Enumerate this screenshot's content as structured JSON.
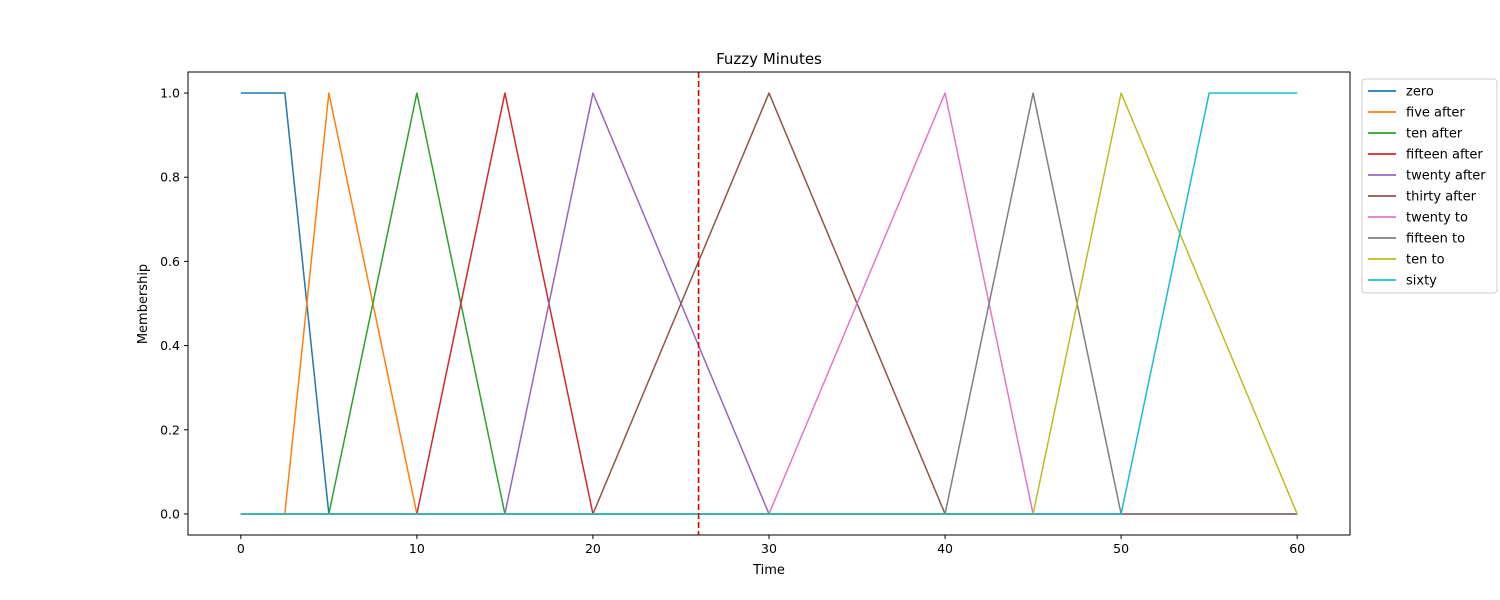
{
  "chart_data": {
    "type": "line",
    "title": "Fuzzy Minutes",
    "xlabel": "Time",
    "ylabel": "Membership",
    "xlim": [
      -3,
      63
    ],
    "ylim": [
      -0.05,
      1.05
    ],
    "xticks": [
      0,
      10,
      20,
      30,
      40,
      50,
      60
    ],
    "yticks": [
      0.0,
      0.2,
      0.4,
      0.6,
      0.8,
      1.0
    ],
    "xtick_labels": [
      "0",
      "10",
      "20",
      "30",
      "40",
      "50",
      "60"
    ],
    "ytick_labels": [
      "0.0",
      "0.2",
      "0.4",
      "0.6",
      "0.8",
      "1.0"
    ],
    "grid": false,
    "legend_placement": "outside-right-top",
    "vline": {
      "x": 26,
      "color": "#e00000",
      "style": "dashed"
    },
    "series": [
      {
        "name": "zero",
        "color": "#1f77b4",
        "x": [
          0,
          2.5,
          5,
          60
        ],
        "y": [
          1,
          1,
          0,
          0
        ]
      },
      {
        "name": "five after",
        "color": "#ff7f0e",
        "x": [
          0,
          2.5,
          5,
          10,
          60
        ],
        "y": [
          0,
          0,
          1,
          0,
          0
        ]
      },
      {
        "name": "ten after",
        "color": "#2ca02c",
        "x": [
          0,
          5,
          10,
          15,
          60
        ],
        "y": [
          0,
          0,
          1,
          0,
          0
        ]
      },
      {
        "name": "fifteen after",
        "color": "#d62728",
        "x": [
          0,
          10,
          15,
          20,
          60
        ],
        "y": [
          0,
          0,
          1,
          0,
          0
        ]
      },
      {
        "name": "twenty after",
        "color": "#9467bd",
        "x": [
          0,
          15,
          20,
          30,
          60
        ],
        "y": [
          0,
          0,
          1,
          0,
          0
        ]
      },
      {
        "name": "thirty after",
        "color": "#8c564b",
        "x": [
          0,
          20,
          30,
          40,
          60
        ],
        "y": [
          0,
          0,
          1,
          0,
          0
        ]
      },
      {
        "name": "twenty to",
        "color": "#e377c2",
        "x": [
          0,
          30,
          40,
          45,
          60
        ],
        "y": [
          0,
          0,
          1,
          0,
          0
        ]
      },
      {
        "name": "fifteen to",
        "color": "#7f7f7f",
        "x": [
          0,
          40,
          45,
          50,
          60
        ],
        "y": [
          0,
          0,
          1,
          0,
          0
        ]
      },
      {
        "name": "ten to",
        "color": "#bcbd22",
        "x": [
          0,
          45,
          50,
          60
        ],
        "y": [
          0,
          0,
          1,
          0
        ]
      },
      {
        "name": "sixty",
        "color": "#17becf",
        "x": [
          0,
          50,
          55,
          60
        ],
        "y": [
          0,
          0,
          1,
          1
        ]
      }
    ]
  }
}
